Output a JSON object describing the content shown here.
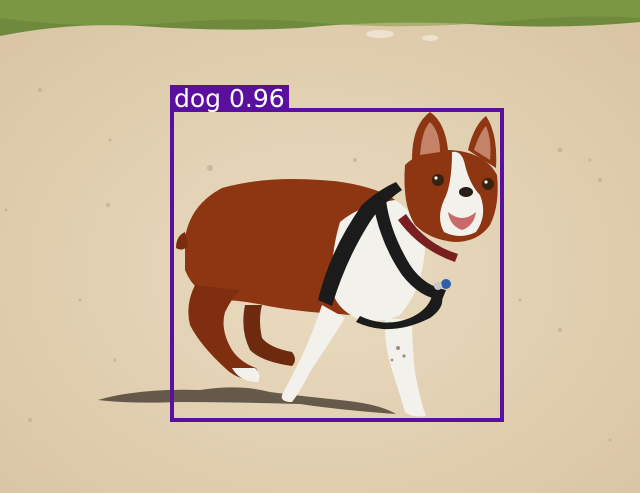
{
  "colors": {
    "sand": "#e6d5b8",
    "grass": "#6f8a3c",
    "dog_brown": "#8e3512",
    "dog_white": "#f3f1ec",
    "harness": "#1b1b1b",
    "detection": "#5b0f9e"
  },
  "detections": [
    {
      "label": "dog 0.96",
      "class": "dog",
      "score": 0.96
    }
  ]
}
